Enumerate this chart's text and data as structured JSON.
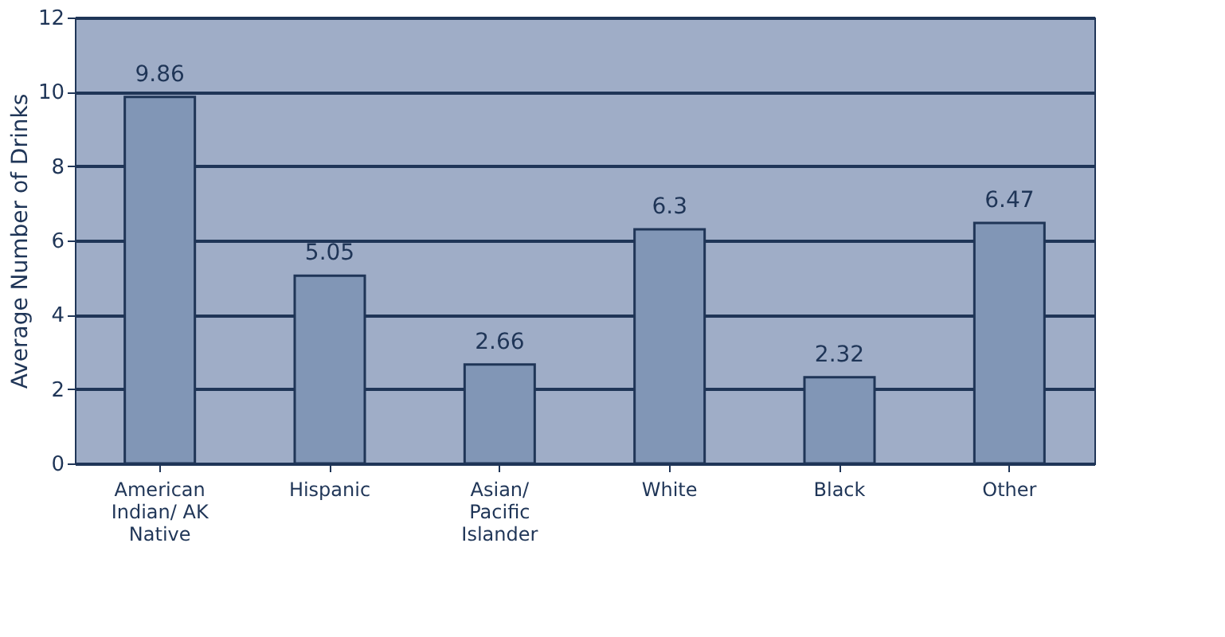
{
  "chart_data": {
    "type": "bar",
    "ylabel": "Average Number of Drinks",
    "categories": [
      "American\nIndian/ AK\nNative",
      "Hispanic",
      "Asian/\nPacific\nIslander",
      "White",
      "Black",
      "Other"
    ],
    "values": [
      9.86,
      5.05,
      2.66,
      6.3,
      2.32,
      6.47
    ],
    "color": "#8196b6",
    "ylim": [
      0,
      12
    ],
    "yticks": [
      0,
      2,
      4,
      6,
      8,
      10,
      12
    ],
    "grid": "y",
    "data_labels": true
  }
}
